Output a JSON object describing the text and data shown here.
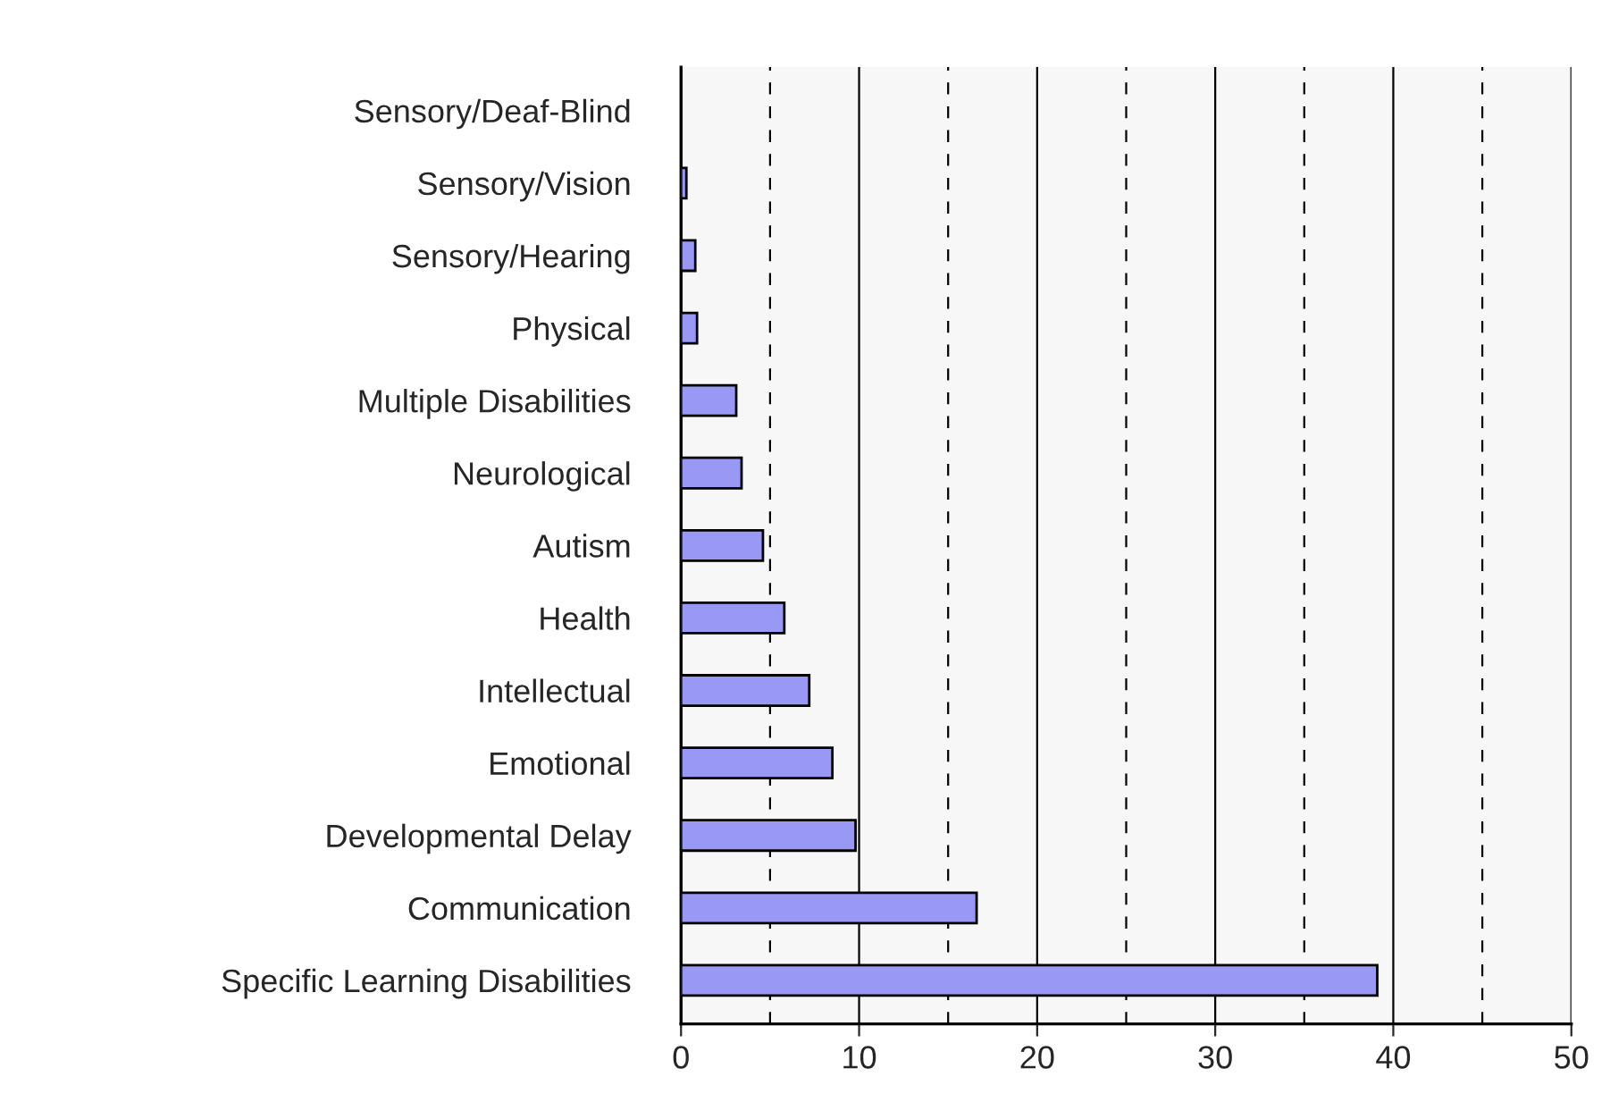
{
  "chart_data": {
    "type": "bar",
    "orientation": "horizontal",
    "categories": [
      "Sensory/Deaf-Blind",
      "Sensory/Vision",
      "Sensory/Hearing",
      "Physical",
      "Multiple Disabilities",
      "Neurological",
      "Autism",
      "Health",
      "Intellectual",
      "Emotional",
      "Developmental Delay",
      "Communication",
      "Specific Learning Disabilities"
    ],
    "values": [
      0,
      0.3,
      0.8,
      0.9,
      3.1,
      3.4,
      4.6,
      5.8,
      7.2,
      8.5,
      9.8,
      16.6,
      39.1
    ],
    "color": "#9999f5",
    "xlim": [
      0,
      50
    ],
    "xticks": [
      0,
      {
        "value": 5,
        "label": null
      },
      10,
      {
        "value": 15,
        "label": null
      },
      20,
      {
        "value": 25,
        "label": null
      },
      30,
      {
        "value": 35,
        "label": null
      },
      40,
      {
        "value": 45,
        "label": null
      },
      50
    ],
    "grid": "x"
  }
}
